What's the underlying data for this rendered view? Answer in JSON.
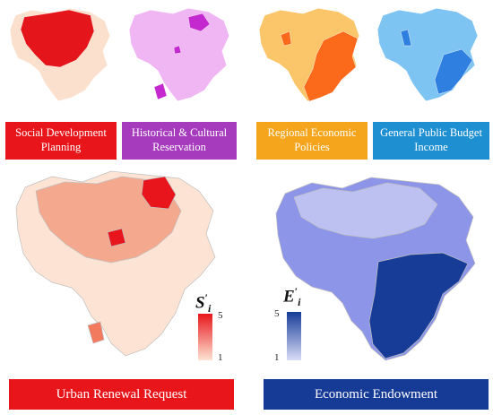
{
  "small_maps": [
    {
      "label_line1": "Social Development",
      "label_line2": "Planning",
      "color": "#e8151b",
      "base": "#fbe0cd",
      "accent": "#e5161b"
    },
    {
      "label_line1": "Historical & Cultural",
      "label_line2": "Reservation",
      "color": "#a63bbd",
      "base": "#f0b6f4",
      "accent": "#c429cf"
    },
    {
      "label_line1": "Regional Economic",
      "label_line2": "Policies",
      "color": "#f5a51c",
      "base": "#fbc56a",
      "accent": "#fb6a1a"
    },
    {
      "label_line1": "General Public Budget",
      "label_line2": "Income",
      "color": "#1e8fd0",
      "base": "#7ec4f3",
      "accent": "#2e7fe0"
    }
  ],
  "large_maps": [
    {
      "label": "Urban Renewal Request",
      "color": "#e8151b",
      "legend": {
        "symbol": "S",
        "sub": "i",
        "max": "5",
        "min": "1",
        "high_color": "#e8161c",
        "low_color": "#fde3d3"
      }
    },
    {
      "label": "Economic Endowment",
      "color": "#163b96",
      "legend": {
        "symbol": "E",
        "sub": "i",
        "max": "5",
        "min": "1",
        "high_color": "#163c98",
        "low_color": "#d9dcf6"
      }
    }
  ]
}
